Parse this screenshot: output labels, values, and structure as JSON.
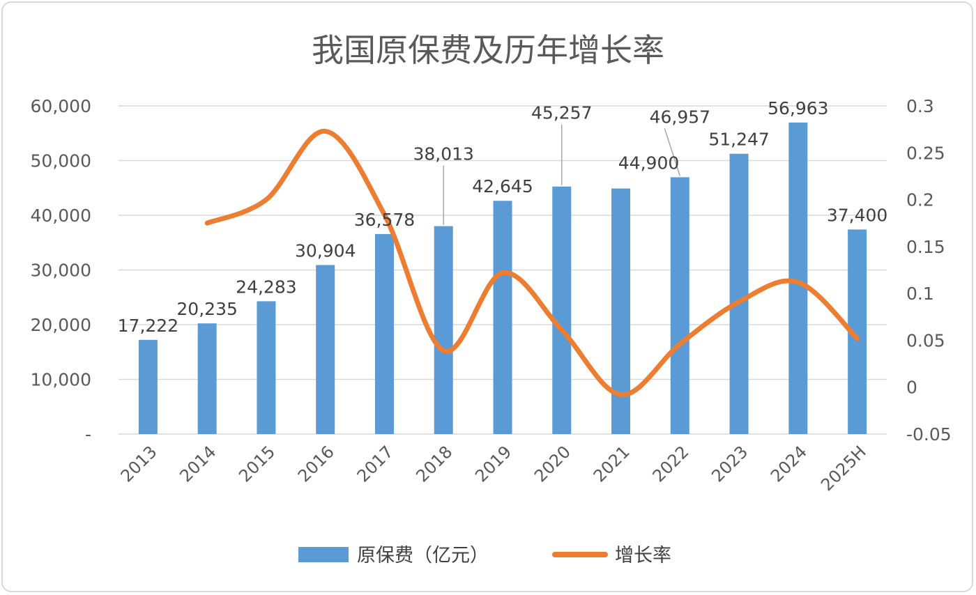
{
  "chart_data": {
    "type": "bar",
    "title": "我国原保费及历年增长率",
    "categories": [
      "2013",
      "2014",
      "2015",
      "2016",
      "2017",
      "2018",
      "2019",
      "2020",
      "2021",
      "2022",
      "2023",
      "2024",
      "2025H"
    ],
    "series": [
      {
        "name": "原保费（亿元）",
        "type": "bar",
        "axis": "left",
        "color": "#5b9bd5",
        "values": [
          17222,
          20235,
          24283,
          30904,
          36578,
          38013,
          42645,
          45257,
          44900,
          46957,
          51247,
          56963,
          37400
        ],
        "labels": [
          "17,222",
          "20,235",
          "24,283",
          "30,904",
          "36,578",
          "38,013",
          "42,645",
          "45,257",
          "44,900",
          "46,957",
          "51,247",
          "56,963",
          "37,400"
        ]
      },
      {
        "name": "增长率",
        "type": "line",
        "smooth": true,
        "axis": "right",
        "color": "#ed7d31",
        "values": [
          null,
          0.175,
          0.2,
          0.273,
          0.184,
          0.039,
          0.122,
          0.061,
          -0.008,
          0.046,
          0.091,
          0.112,
          0.052
        ]
      }
    ],
    "left_axis": {
      "ylim": [
        0,
        60000
      ],
      "ticks": [
        0,
        10000,
        20000,
        30000,
        40000,
        50000,
        60000
      ],
      "tick_labels": [
        "-",
        "10,000",
        "20,000",
        "30,000",
        "40,000",
        "50,000",
        "60,000"
      ]
    },
    "right_axis": {
      "ylim": [
        -0.05,
        0.3
      ],
      "ticks": [
        -0.05,
        0,
        0.05,
        0.1,
        0.15,
        0.2,
        0.25,
        0.3
      ],
      "tick_labels": [
        "-0.05",
        "0",
        "0.05",
        "0.1",
        "0.15",
        "0.2",
        "0.25",
        "0.3"
      ]
    },
    "grid": true,
    "legend_position": "bottom"
  }
}
